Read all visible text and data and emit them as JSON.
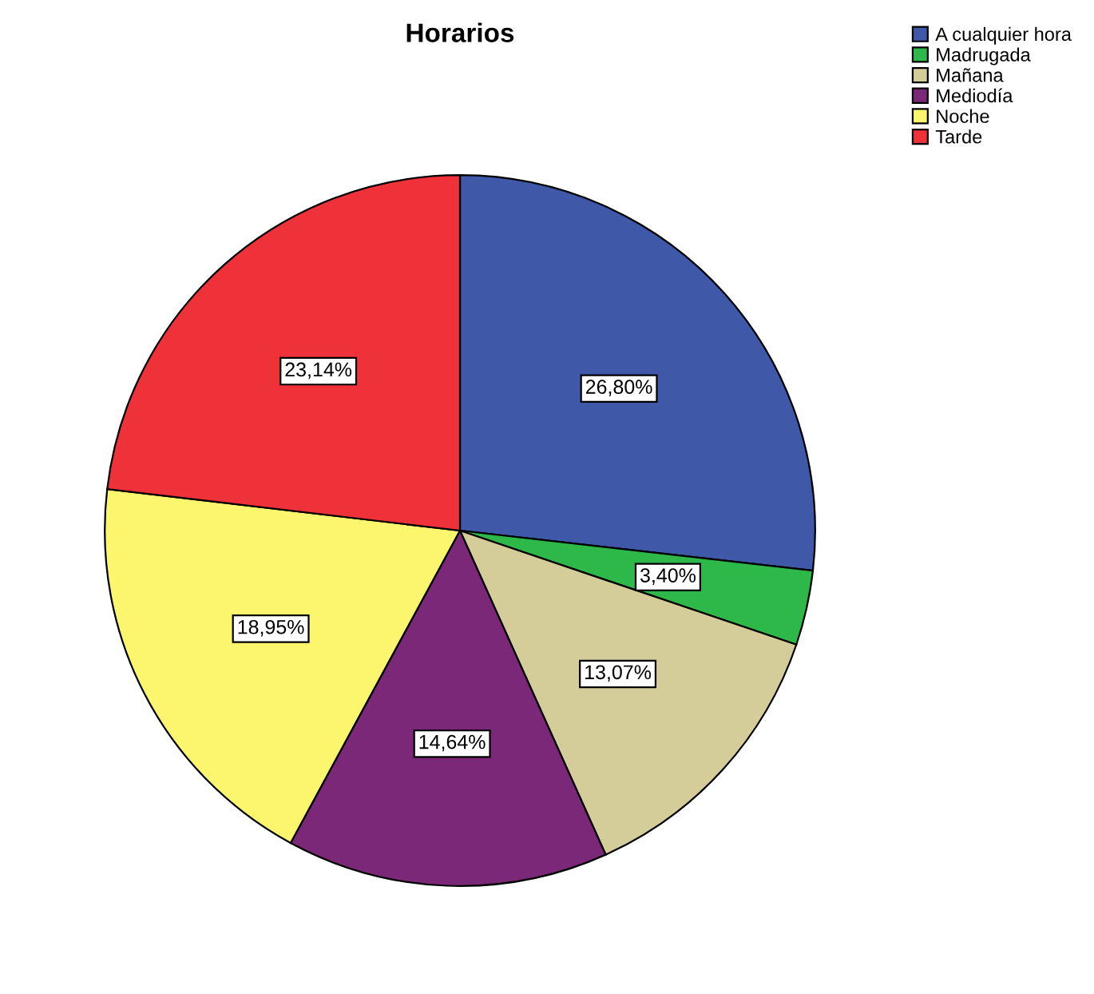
{
  "chart_data": {
    "type": "pie",
    "title": "Horarios",
    "categories": [
      "A cualquier hora",
      "Madrugada",
      "Mañana",
      "Mediodía",
      "Noche",
      "Tarde"
    ],
    "values": [
      26.8,
      3.4,
      13.07,
      14.64,
      18.95,
      23.14
    ],
    "colors": [
      "#3f58a8",
      "#2eb84a",
      "#d4cd9a",
      "#7b2878",
      "#fbf66e",
      "#ef323a"
    ],
    "value_labels": [
      "26,80%",
      "3,40%",
      "13,07%",
      "14,64%",
      "18,95%",
      "23,14%"
    ],
    "legend": "top right"
  }
}
